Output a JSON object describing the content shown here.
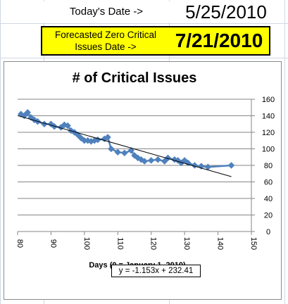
{
  "header": {
    "today_label": "Today's Date ->",
    "today_value": "5/25/2010",
    "forecast_label": "Forecasted Zero Critical Issues Date ->",
    "forecast_value": "7/21/2010",
    "forecast_bg": "#ffff00"
  },
  "chart_data": {
    "type": "scatter",
    "title": "# of Critical Issues",
    "xlabel": "Days (0 = January 1, 2010)",
    "ylabel": "",
    "xlim": [
      80,
      150
    ],
    "ylim": [
      0,
      160
    ],
    "x_ticks": [
      "80",
      "90",
      "100",
      "110",
      "120",
      "130",
      "140",
      "150"
    ],
    "y_ticks": [
      "0",
      "20",
      "40",
      "60",
      "80",
      "100",
      "120",
      "140",
      "160"
    ],
    "grid": "horizontal",
    "legend": "none",
    "series": [
      {
        "color": "#4f81bd",
        "marker": "diamond",
        "points": [
          [
            81,
            142
          ],
          [
            82,
            140
          ],
          [
            83,
            144
          ],
          [
            84,
            138
          ],
          [
            85,
            135
          ],
          [
            86,
            133
          ],
          [
            88,
            130
          ],
          [
            90,
            130
          ],
          [
            91,
            127
          ],
          [
            93,
            126
          ],
          [
            94,
            129
          ],
          [
            95,
            128
          ],
          [
            96,
            122
          ],
          [
            97,
            120
          ],
          [
            98,
            117
          ],
          [
            99,
            113
          ],
          [
            100,
            110
          ],
          [
            101,
            110
          ],
          [
            102,
            109
          ],
          [
            103,
            110
          ],
          [
            104,
            111
          ],
          [
            106,
            112
          ],
          [
            107,
            114
          ],
          [
            108,
            100
          ],
          [
            110,
            96
          ],
          [
            112,
            95
          ],
          [
            114,
            98
          ],
          [
            115,
            92
          ],
          [
            116,
            89
          ],
          [
            117,
            87
          ],
          [
            118,
            85
          ],
          [
            120,
            86
          ],
          [
            122,
            87
          ],
          [
            124,
            85
          ],
          [
            125,
            89
          ],
          [
            127,
            87
          ],
          [
            128,
            86
          ],
          [
            129,
            83
          ],
          [
            130,
            86
          ],
          [
            131,
            83
          ],
          [
            133,
            80
          ],
          [
            135,
            79
          ],
          [
            137,
            78
          ],
          [
            144,
            80
          ]
        ]
      }
    ],
    "trendline": {
      "equation_label": "y = -1.153x + 232.41",
      "slope": -1.153,
      "intercept": 232.41,
      "x_range": [
        80,
        144
      ],
      "color": "#000000"
    }
  }
}
